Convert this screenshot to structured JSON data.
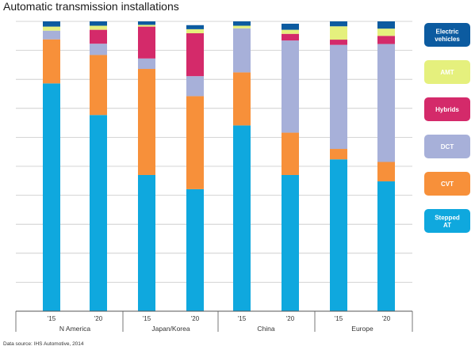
{
  "chart_data": {
    "type": "bar",
    "stacked": true,
    "percent_stacked": true,
    "title": "Automatic transmission installations",
    "source": "Data source: IHS Automotive, 2014",
    "categories": [
      "'15",
      "'20",
      "'15",
      "'20",
      "'15",
      "'20",
      "'15",
      "'20"
    ],
    "groups": [
      {
        "label": "N America",
        "categories": [
          "'15",
          "'20"
        ]
      },
      {
        "label": "Japan/Korea",
        "categories": [
          "'15",
          "'20"
        ]
      },
      {
        "label": "China",
        "categories": [
          "'15",
          "'20"
        ]
      },
      {
        "label": "Europe",
        "categories": [
          "'15",
          "'20"
        ]
      }
    ],
    "ylim": [
      0,
      100
    ],
    "grid": true,
    "legend_position": "right",
    "series": [
      {
        "name": "Stepped AT",
        "color": "#0fa8de",
        "values": [
          78.6,
          67.7,
          47.0,
          42.1,
          64.1,
          47.0,
          52.4,
          44.8
        ]
      },
      {
        "name": "CVT",
        "color": "#f7903a",
        "values": [
          15.2,
          20.7,
          36.6,
          32.1,
          18.3,
          14.6,
          3.6,
          6.7
        ]
      },
      {
        "name": "DCT",
        "color": "#a7b0d9",
        "values": [
          3.0,
          3.9,
          3.6,
          6.9,
          15.2,
          31.8,
          35.9,
          40.7
        ]
      },
      {
        "name": "Hybrids",
        "color": "#d42a6a",
        "values": [
          0.0,
          4.8,
          11.0,
          14.8,
          0.0,
          2.3,
          1.8,
          2.8
        ]
      },
      {
        "name": "AMT",
        "color": "#e5f07d",
        "values": [
          1.4,
          1.4,
          0.6,
          1.4,
          0.9,
          1.4,
          4.6,
          2.5
        ]
      },
      {
        "name": "Electric vehicles",
        "color": "#0c5ba0",
        "values": [
          1.8,
          1.5,
          1.2,
          1.4,
          1.5,
          2.1,
          1.7,
          2.5
        ]
      }
    ],
    "legend": [
      {
        "label": "Electric vehicles",
        "color": "#0c5ba0",
        "text_color": "#ffffff"
      },
      {
        "label": "AMT",
        "color": "#e5f07d",
        "text_color": "#ffffff"
      },
      {
        "label": "Hybrids",
        "color": "#d42a6a",
        "text_color": "#ffffff"
      },
      {
        "label": "DCT",
        "color": "#a7b0d9",
        "text_color": "#ffffff"
      },
      {
        "label": "CVT",
        "color": "#f7903a",
        "text_color": "#ffffff"
      },
      {
        "label": "Stepped AT",
        "color": "#0fa8de",
        "text_color": "#ffffff"
      }
    ]
  }
}
